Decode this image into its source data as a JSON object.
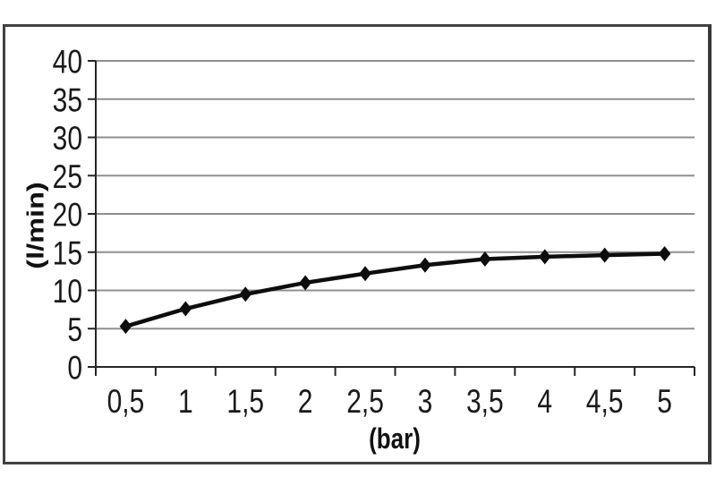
{
  "chart_data": {
    "type": "line",
    "title": "",
    "xlabel": "(bar)",
    "ylabel": "(l/min)",
    "x": [
      0.5,
      1,
      1.5,
      2,
      2.5,
      3,
      3.5,
      4,
      4.5,
      5
    ],
    "x_tick_labels": [
      "0,5",
      "1",
      "1,5",
      "2",
      "2,5",
      "3",
      "3,5",
      "4",
      "4,5",
      "5"
    ],
    "values": [
      5.3,
      7.6,
      9.5,
      11.0,
      12.2,
      13.3,
      14.1,
      14.4,
      14.6,
      14.8
    ],
    "ylim": [
      0,
      40
    ],
    "xlim_categories": true,
    "y_ticks": [
      0,
      5,
      10,
      15,
      20,
      25,
      30,
      35,
      40
    ],
    "y_tick_labels": [
      "0",
      "5",
      "10",
      "15",
      "20",
      "25",
      "30",
      "35",
      "40"
    ],
    "grid": true,
    "legend": false,
    "marker": "diamond",
    "colors": {
      "line": "#0d0d0d",
      "marker": "#0d0d0d",
      "grid": "#8f8f8f",
      "axis": "#262626",
      "text": "#1a1a1a",
      "frame_border": "#414141",
      "background": "#ffffff"
    }
  }
}
